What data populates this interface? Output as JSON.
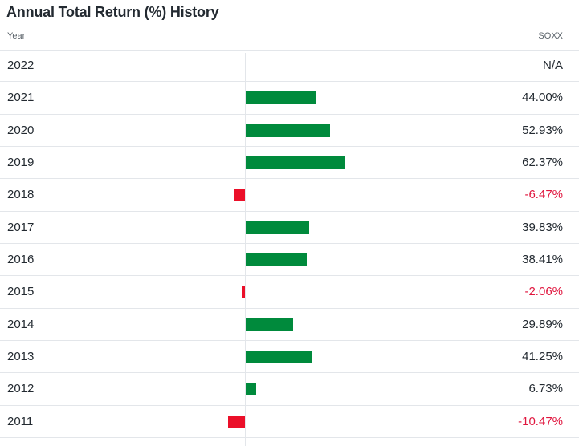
{
  "title": "Annual Total Return (%) History",
  "header": {
    "year_label": "Year",
    "ticker_label": "SOXX"
  },
  "colors": {
    "positive": "#008a3c",
    "negative": "#eb0f29",
    "negative_text": "#e0163e"
  },
  "chart_data": {
    "type": "bar",
    "title": "Annual Total Return (%) History",
    "series": [
      {
        "name": "SOXX",
        "values": [
          null,
          44.0,
          52.93,
          62.37,
          -6.47,
          39.83,
          38.41,
          -2.06,
          29.89,
          41.25,
          6.73,
          -10.47
        ]
      }
    ],
    "categories": [
      "2022",
      "2021",
      "2020",
      "2019",
      "2018",
      "2017",
      "2016",
      "2015",
      "2014",
      "2013",
      "2012",
      "2011"
    ],
    "value_labels": [
      "N/A",
      "44.00%",
      "52.93%",
      "62.37%",
      "-6.47%",
      "39.83%",
      "38.41%",
      "-2.06%",
      "29.89%",
      "41.25%",
      "6.73%",
      "-10.47%"
    ]
  }
}
